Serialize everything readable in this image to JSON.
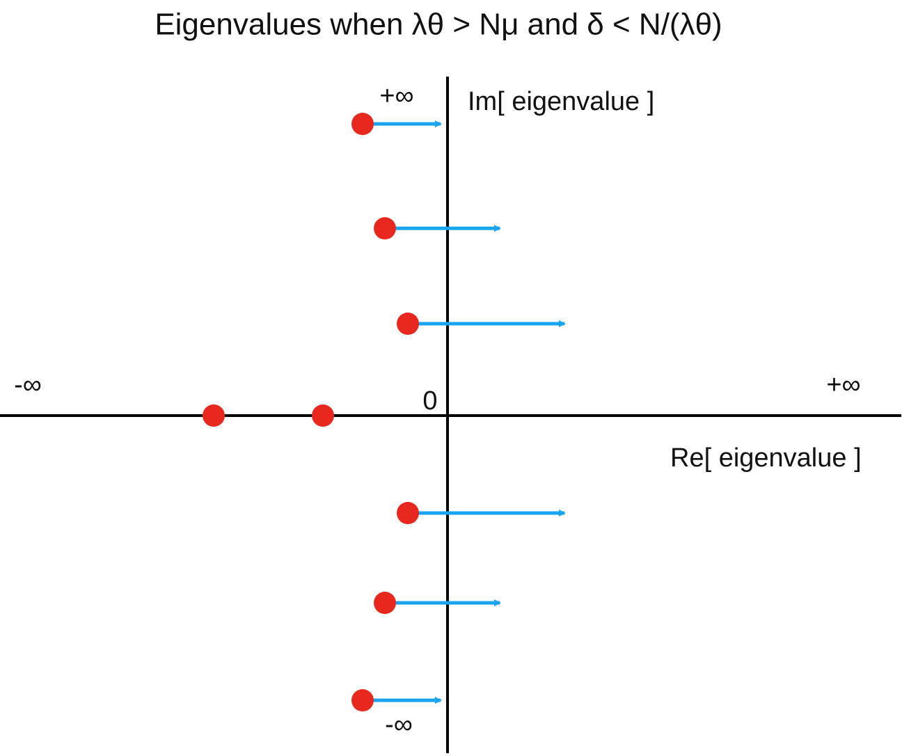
{
  "title": "Eigenvalues when  λθ > Nμ  and  δ < N/(λθ)",
  "axes": {
    "imaginary": {
      "label": "Im[ eigenvalue ]",
      "top": "+∞",
      "bottom": "-∞"
    },
    "real": {
      "label": "Re[ eigenvalue ]",
      "left": "-∞",
      "right": "+∞"
    },
    "origin": "0"
  }
}
